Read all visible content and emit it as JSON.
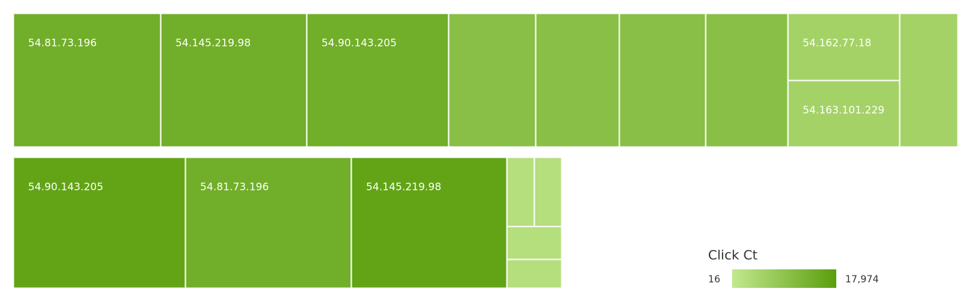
{
  "chart_data": {
    "type": "treemap",
    "groups": [
      {
        "categories": [
          "54.81.73.196",
          "54.145.219.98",
          "54.90.143.205",
          null,
          null,
          null,
          null,
          "54.162.77.18",
          "54.163.101.229",
          null
        ],
        "values": [
          14000,
          14000,
          14000,
          9900,
          9900,
          9900,
          9900,
          5400,
          5400,
          5400
        ]
      },
      {
        "categories": [
          "54.90.143.205",
          "54.81.73.196",
          "54.145.219.98",
          null,
          null,
          null,
          null
        ],
        "values": [
          16600,
          14000,
          16600,
          2350,
          2350,
          2350,
          2350
        ]
      }
    ],
    "legend": {
      "title": "Click Ct",
      "min": 16,
      "max": {
        "value": 17974,
        "label": "17,974"
      }
    },
    "colors": [
      "#c3e88e",
      "#5a9e0c"
    ]
  }
}
